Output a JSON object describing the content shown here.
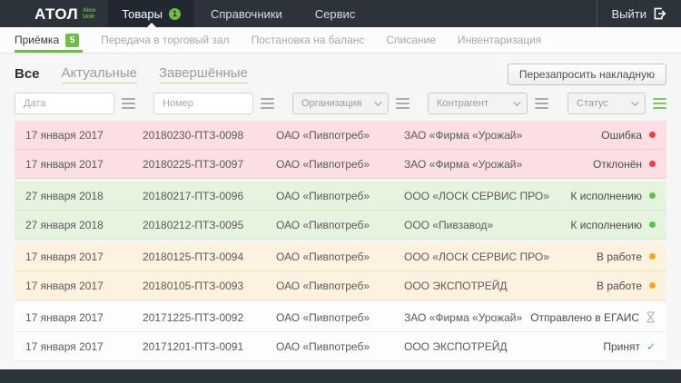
{
  "colors": {
    "header-bg": "#2c333b",
    "header-active-bg": "#212831",
    "accent-green": "#6dbe45",
    "page-bg": "#f6f6f6",
    "subnav-bg": "#fcfcfc",
    "row-error-bg": "#fbdfe2",
    "row-error-border": "#f3ccd1",
    "row-ready-bg": "#e6f3df",
    "row-ready-border": "#d5ebc8",
    "row-progress-bg": "#fdf2e0",
    "row-progress-border": "#f3e0bf",
    "row-done-bg": "#fdfdfd",
    "row-done-border": "#ececec",
    "status-red": "#ee3d4e",
    "status-green": "#5dc14b",
    "status-orange": "#ffa51f",
    "check-green": "#4cb944",
    "hourglass-gray": "#b3bac1"
  },
  "header": {
    "logo_title": "АТОЛ",
    "logo_sub_top": "Alco",
    "logo_sub_bottom": "Unit",
    "menu": [
      {
        "label": "Товары",
        "badge": "1"
      },
      {
        "label": "Справочники"
      },
      {
        "label": "Сервис"
      }
    ],
    "logout_label": "Выйти"
  },
  "subnav": {
    "items": [
      {
        "label": "Приёмка",
        "badge": "5"
      },
      {
        "label": "Передача в торговый зал"
      },
      {
        "label": "Постановка на баланс"
      },
      {
        "label": "Списание"
      },
      {
        "label": "Инвентаризация"
      }
    ]
  },
  "tabs": [
    {
      "label": "Все"
    },
    {
      "label": "Актуальные"
    },
    {
      "label": "Завершённые"
    }
  ],
  "toolbar": {
    "refresh_button_label": "Перезапросить накладную"
  },
  "filters": {
    "date_placeholder": "Дата",
    "number_placeholder": "Номер",
    "organization_label": "Организация",
    "counterparty_label": "Контрагент",
    "status_label": "Статус"
  },
  "table": {
    "rows": [
      {
        "date": "17 января 2017",
        "number": "20180230-ПТЗ-0098",
        "organization": "ОАО «Пивпотреб»",
        "counterparty": "ЗАО «Фирма «Урожай»",
        "status": "Ошибка",
        "status_icon": "red-dot",
        "group": "error"
      },
      {
        "date": "17 января 2017",
        "number": "20180225-ПТЗ-0097",
        "organization": "ОАО «Пивпотреб»",
        "counterparty": "ЗАО «Фирма «Урожай»",
        "status": "Отклонён",
        "status_icon": "red-dot",
        "group": "error"
      },
      {
        "date": "27 января 2018",
        "number": "20180217-ПТЗ-0096",
        "organization": "ОАО «Пивпотреб»",
        "counterparty": "ООО «ЛОСК СЕРВИС ПРО»",
        "status": "К исполнению",
        "status_icon": "green-dot",
        "group": "ready"
      },
      {
        "date": "27 января 2018",
        "number": "20180212-ПТЗ-0095",
        "organization": "ОАО «Пивпотреб»",
        "counterparty": "ООО «Пивзавод»",
        "status": "К исполнению",
        "status_icon": "green-dot",
        "group": "ready"
      },
      {
        "date": "17 января 2017",
        "number": "20180125-ПТЗ-0094",
        "organization": "ОАО «Пивпотреб»",
        "counterparty": "ООО «ЛОСК СЕРВИС ПРО»",
        "status": "В работе",
        "status_icon": "orange-dot",
        "group": "progress"
      },
      {
        "date": "17 января 2017",
        "number": "20180105-ПТЗ-0093",
        "organization": "ОАО «Пивпотреб»",
        "counterparty": "ООО ЭКСПОТРЕЙД",
        "status": "В работе",
        "status_icon": "orange-dot",
        "group": "progress"
      },
      {
        "date": "17 января 2017",
        "number": "20171225-ПТЗ-0092",
        "organization": "ОАО «Пивпотреб»",
        "counterparty": "ЗАО «Фирма «Урожай»",
        "status": "Отправлено в ЕГАИС",
        "status_icon": "hourglass",
        "group": "done"
      },
      {
        "date": "17 января 2017",
        "number": "20171201-ПТЗ-0091",
        "organization": "ОАО «Пивпотреб»",
        "counterparty": "ООО ЭКСПОТРЕЙД",
        "status": "Принят",
        "status_icon": "check",
        "group": "done"
      }
    ]
  }
}
